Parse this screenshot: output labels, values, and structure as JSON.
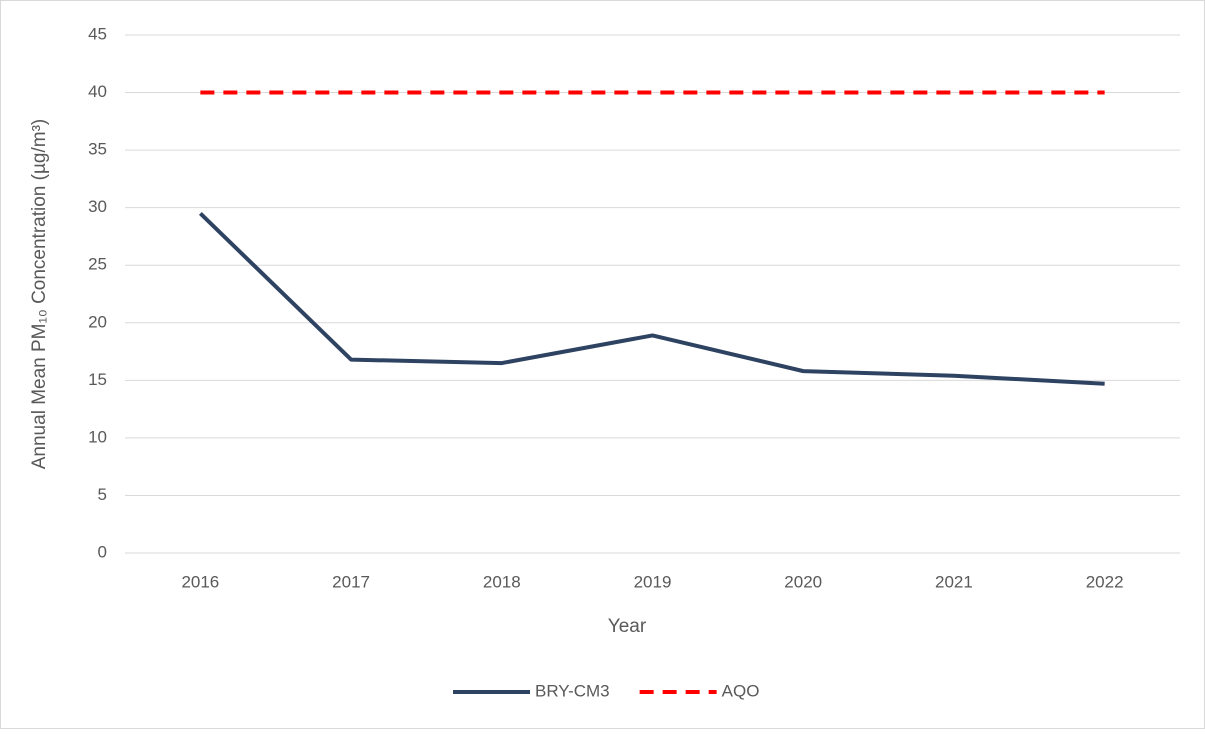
{
  "chart_data": {
    "type": "line",
    "x_label": "Year",
    "y_label": "Annual Mean PM₁₀ Concentration (µg/m³)",
    "categories": [
      "2016",
      "2017",
      "2018",
      "2019",
      "2020",
      "2021",
      "2022"
    ],
    "series": [
      {
        "name": "BRY-CM3",
        "color": "#2e4361",
        "style": "solid",
        "values": [
          29.5,
          16.8,
          16.5,
          18.9,
          15.8,
          15.4,
          14.7
        ]
      },
      {
        "name": "AQO",
        "color": "#ff0000",
        "style": "dashed",
        "values": [
          40,
          40,
          40,
          40,
          40,
          40,
          40
        ]
      }
    ],
    "ylim": [
      0,
      45
    ],
    "yticks": [
      0,
      5,
      10,
      15,
      20,
      25,
      30,
      35,
      40,
      45
    ],
    "grid": true,
    "legend": "bottom"
  }
}
